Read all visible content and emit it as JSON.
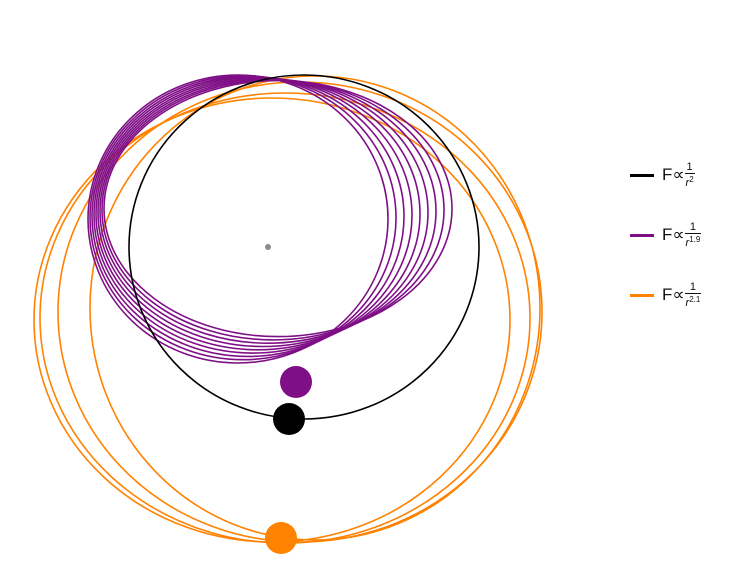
{
  "colors": {
    "inverse_square": "#000000",
    "power_1_9": "#7f0f86",
    "power_2_1": "#ff8200",
    "center_dot": "#8a8a8a"
  },
  "legend": {
    "items": [
      {
        "prefix": "F∝",
        "numerator": "1",
        "base": "r",
        "exponent": "2",
        "color_key": "inverse_square"
      },
      {
        "prefix": "F∝",
        "numerator": "1",
        "base": "r",
        "exponent": "1.9",
        "color_key": "power_1_9"
      },
      {
        "prefix": "F∝",
        "numerator": "1",
        "base": "r",
        "exponent": "2.1",
        "color_key": "power_2_1"
      }
    ]
  }
}
